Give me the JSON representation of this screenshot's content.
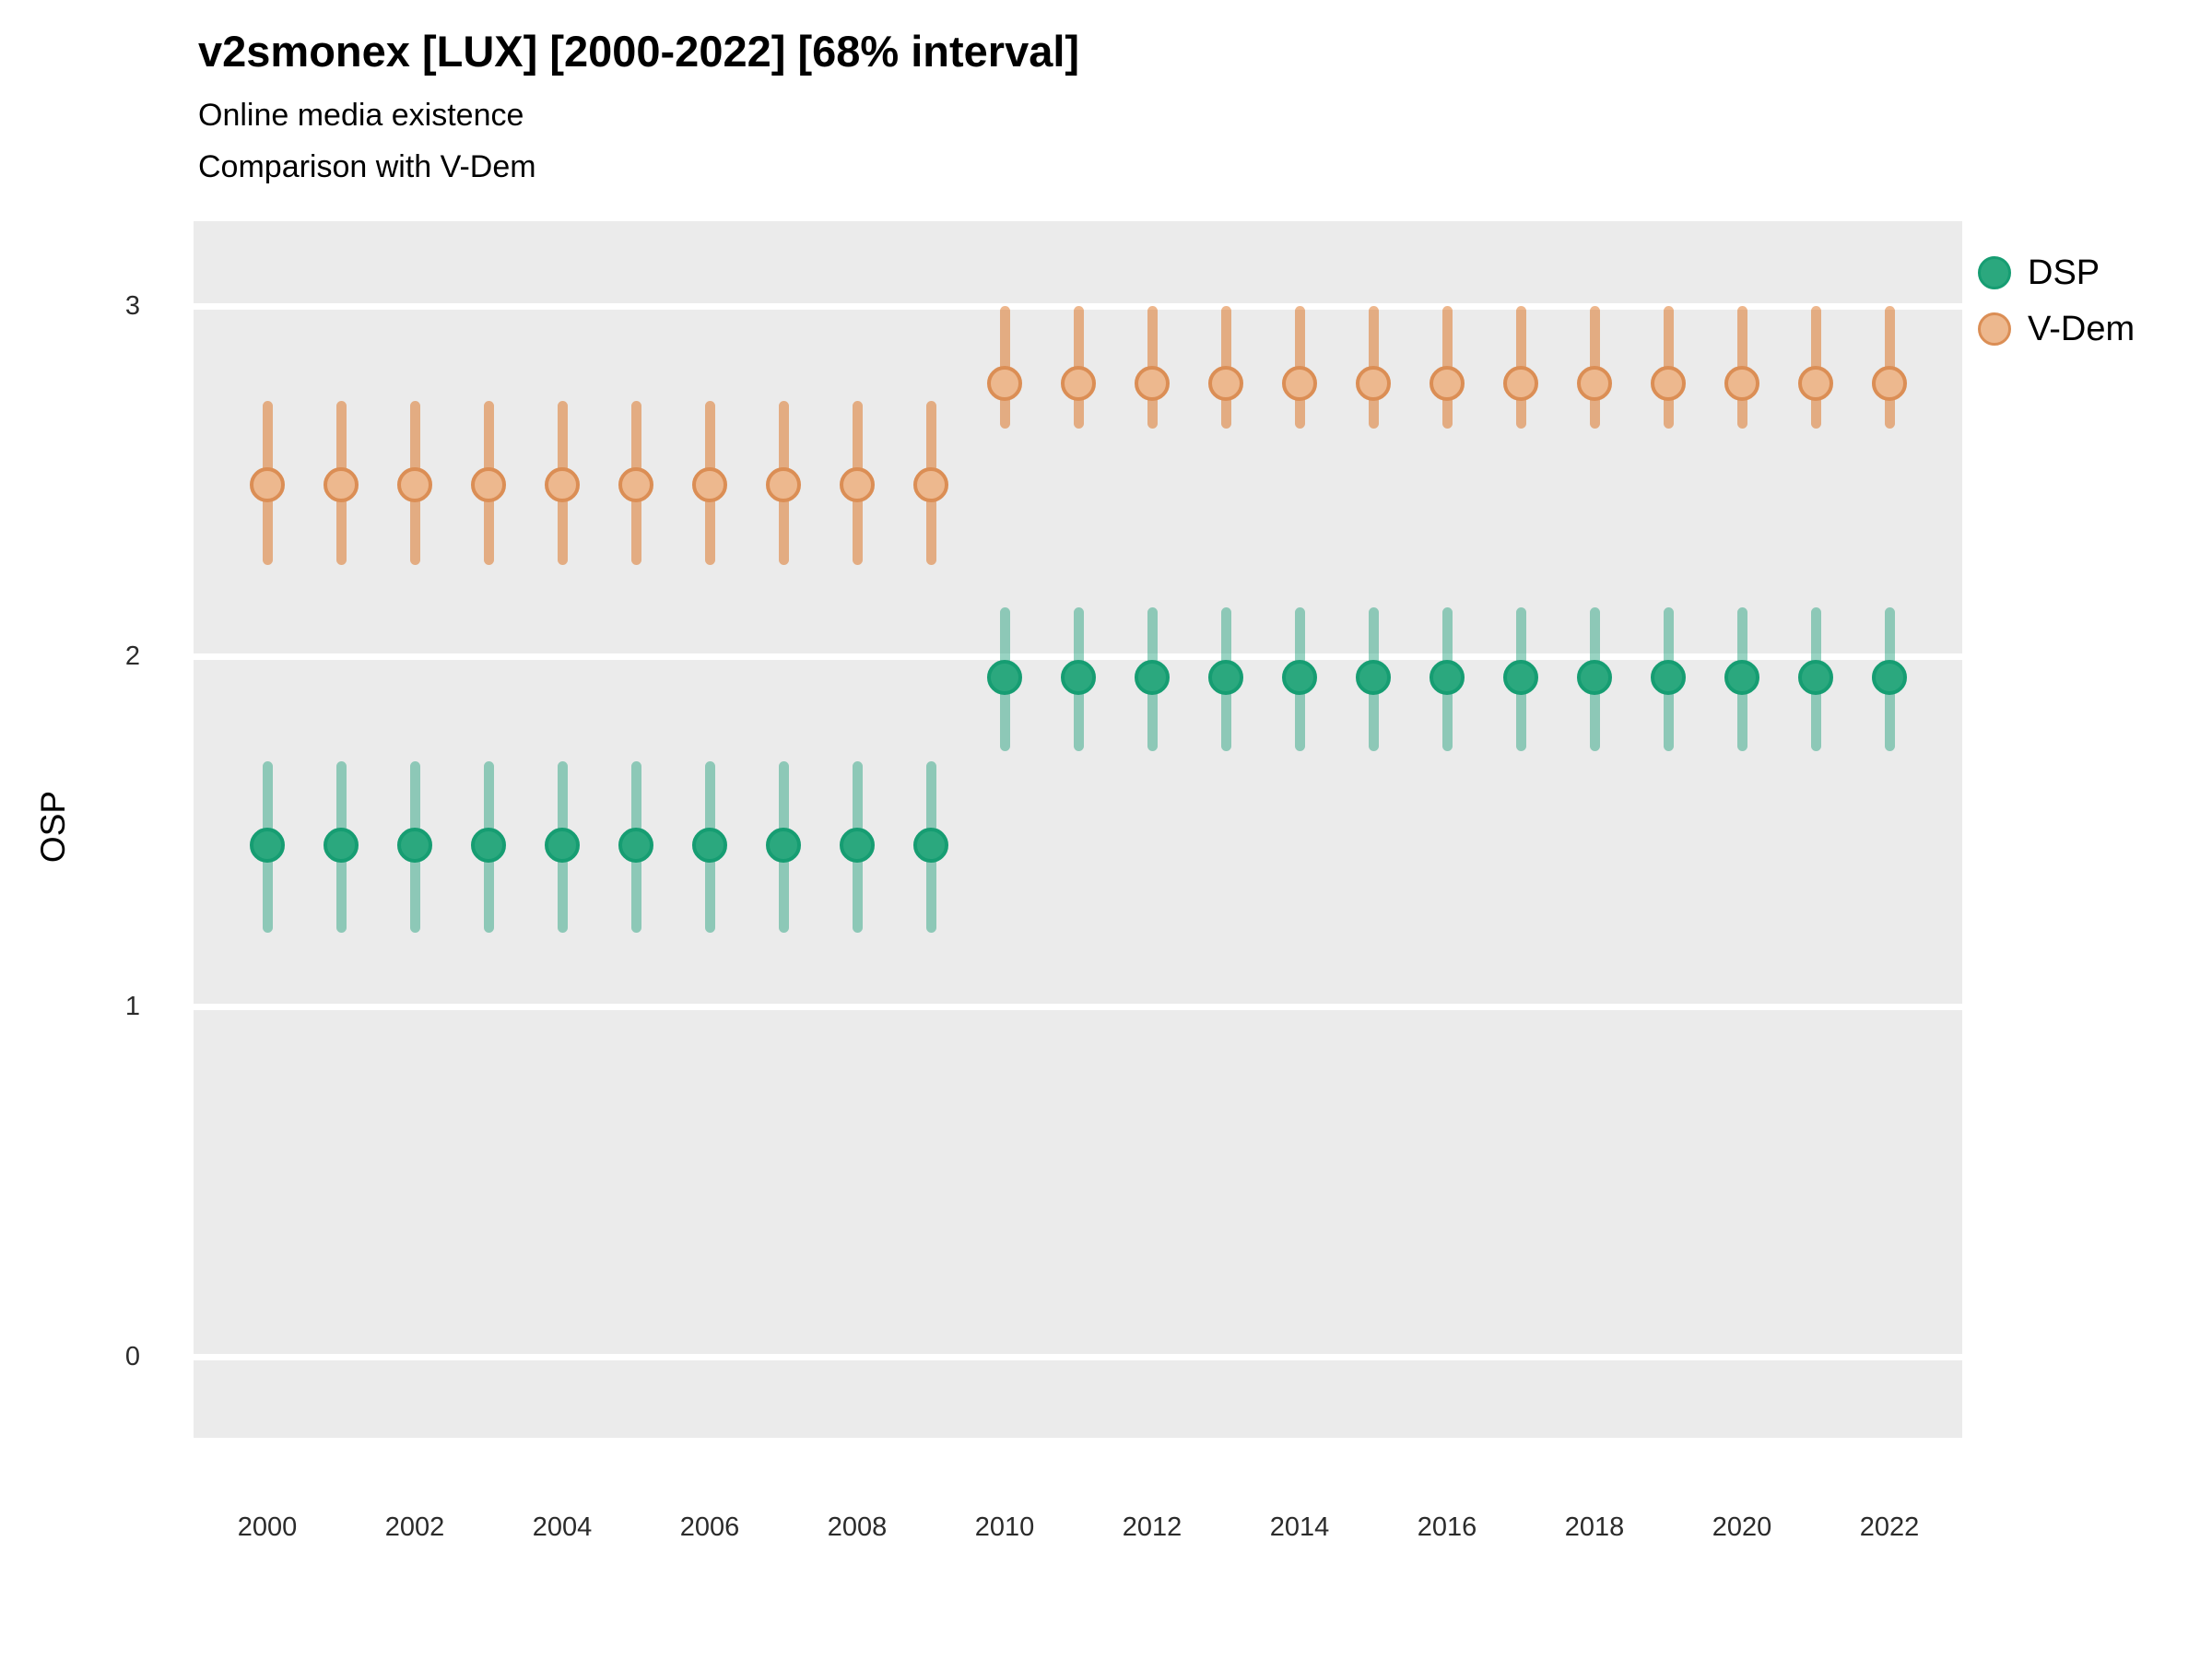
{
  "title": "v2smonex [LUX] [2000-2022] [68% interval]",
  "subtitle_line1": "Online media existence",
  "subtitle_line2": "Comparison with V-Dem",
  "axes": {
    "y_label": "OSP",
    "y_ticks": [
      0,
      1,
      2,
      3
    ],
    "x_ticks": [
      2000,
      2002,
      2004,
      2006,
      2008,
      2010,
      2012,
      2014,
      2016,
      2018,
      2020,
      2022
    ]
  },
  "legend": {
    "position": "right",
    "items": [
      {
        "label": "DSP",
        "series": "dsp"
      },
      {
        "label": "V-Dem",
        "series": "vdem"
      }
    ]
  },
  "colors": {
    "background": "#ffffff",
    "panel": "#ebebeb",
    "gridline": "#ffffff",
    "dsp_base": "#1b9e77",
    "vdem_base": "#d95f02",
    "dsp_bar": "rgba(27,158,119,0.45)",
    "vdem_bar": "rgba(217,95,2,0.45)",
    "dsp_dot_fill": "#2ba87e",
    "dsp_dot_stroke": "#169d72",
    "vdem_dot_fill": "#edb88e",
    "vdem_dot_stroke": "#db8e55"
  },
  "chart_data": {
    "type": "scatter",
    "title": "v2smonex [LUX] [2000-2022] [68% interval]",
    "subtitle": "Online media existence / Comparison with V-Dem",
    "xlabel": "",
    "ylabel": "OSP",
    "interval": "68%",
    "ylim": [
      -0.23,
      3.25
    ],
    "xlim": [
      1999,
      2023
    ],
    "grid": "horizontal-major-only",
    "legend_position": "right",
    "x": [
      2000,
      2001,
      2002,
      2003,
      2004,
      2005,
      2006,
      2007,
      2008,
      2009,
      2010,
      2011,
      2012,
      2013,
      2014,
      2015,
      2016,
      2017,
      2018,
      2019,
      2020,
      2021,
      2022
    ],
    "series": [
      {
        "name": "DSP",
        "key": "dsp",
        "values": [
          1.46,
          1.46,
          1.46,
          1.46,
          1.46,
          1.46,
          1.46,
          1.46,
          1.46,
          1.46,
          1.94,
          1.94,
          1.94,
          1.94,
          1.94,
          1.94,
          1.94,
          1.94,
          1.94,
          1.94,
          1.94,
          1.94,
          1.94
        ],
        "lower": [
          1.21,
          1.21,
          1.21,
          1.21,
          1.21,
          1.21,
          1.21,
          1.21,
          1.21,
          1.21,
          1.73,
          1.73,
          1.73,
          1.73,
          1.73,
          1.73,
          1.73,
          1.73,
          1.73,
          1.73,
          1.73,
          1.73,
          1.73
        ],
        "upper": [
          1.7,
          1.7,
          1.7,
          1.7,
          1.7,
          1.7,
          1.7,
          1.7,
          1.7,
          1.7,
          2.14,
          2.14,
          2.14,
          2.14,
          2.14,
          2.14,
          2.14,
          2.14,
          2.14,
          2.14,
          2.14,
          2.14,
          2.14
        ]
      },
      {
        "name": "V-Dem",
        "key": "vdem",
        "values": [
          2.49,
          2.49,
          2.49,
          2.49,
          2.49,
          2.49,
          2.49,
          2.49,
          2.49,
          2.49,
          2.78,
          2.78,
          2.78,
          2.78,
          2.78,
          2.78,
          2.78,
          2.78,
          2.78,
          2.78,
          2.78,
          2.78,
          2.78
        ],
        "lower": [
          2.26,
          2.26,
          2.26,
          2.26,
          2.26,
          2.26,
          2.26,
          2.26,
          2.26,
          2.26,
          2.65,
          2.65,
          2.65,
          2.65,
          2.65,
          2.65,
          2.65,
          2.65,
          2.65,
          2.65,
          2.65,
          2.65,
          2.65
        ],
        "upper": [
          2.73,
          2.73,
          2.73,
          2.73,
          2.73,
          2.73,
          2.73,
          2.73,
          2.73,
          2.73,
          3.0,
          3.0,
          3.0,
          3.0,
          3.0,
          3.0,
          3.0,
          3.0,
          3.0,
          3.0,
          3.0,
          3.0,
          3.0
        ]
      }
    ]
  }
}
